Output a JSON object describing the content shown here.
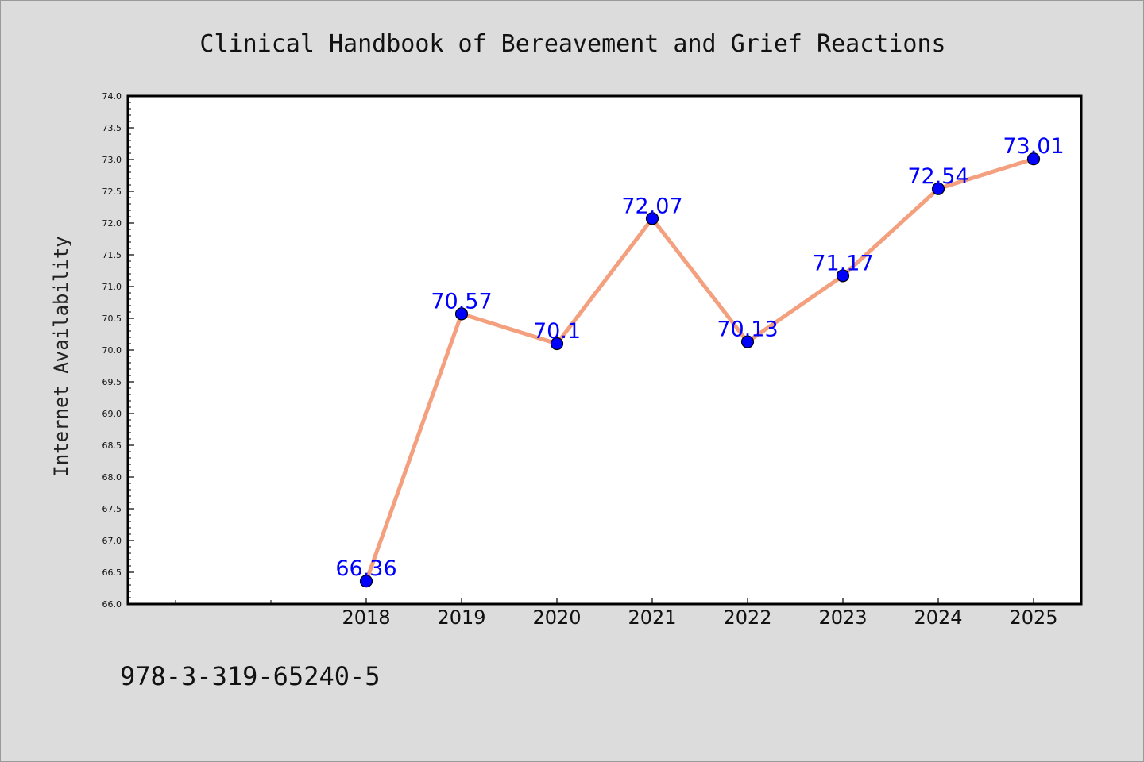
{
  "isbn": "978-3-319-65240-5",
  "chart_data": {
    "type": "line",
    "title": "Clinical Handbook of Bereavement and Grief Reactions",
    "xlabel": "",
    "ylabel": "Internet Availability",
    "categories": [
      "2018",
      "2019",
      "2020",
      "2021",
      "2022",
      "2023",
      "2024",
      "2025"
    ],
    "values": [
      66.36,
      70.57,
      70.1,
      72.07,
      70.13,
      71.17,
      72.54,
      73.01
    ],
    "labels": [
      "66.36",
      "70.57",
      "70.1",
      "72.07",
      "70.13",
      "71.17",
      "72.54",
      "73.01"
    ],
    "ylim": [
      66.0,
      74.0
    ],
    "yticks": [
      "66.0",
      "66.5",
      "67.0",
      "67.5",
      "68.0",
      "68.5",
      "69.0",
      "69.5",
      "70.0",
      "70.5",
      "71.0",
      "71.5",
      "72.0",
      "72.5",
      "73.0",
      "73.5",
      "74.0"
    ],
    "grid": false,
    "line_color": "#f4a07e",
    "marker_color": "#0000ff",
    "label_color": "#0000ff"
  }
}
